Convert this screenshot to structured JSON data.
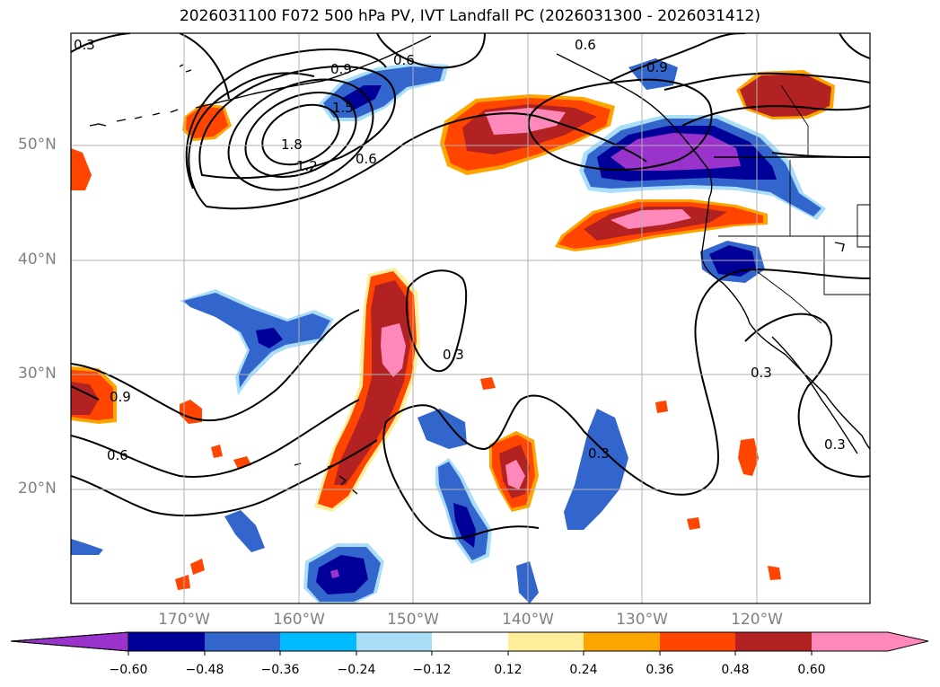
{
  "title": "2026031100 F072 500 hPa PV, IVT Landfall PC (2026031300 - 2026031412)",
  "map": {
    "lat_labels": [
      "50°N",
      "40°N",
      "30°N",
      "20°N"
    ],
    "lon_labels": [
      "170°W",
      "160°W",
      "150°W",
      "140°W",
      "130°W",
      "120°W"
    ],
    "contour_labels": [
      "0.3",
      "0.9",
      "0.6",
      "1.5",
      "1.8",
      "1.2",
      "0.6",
      "0.6",
      "0.9",
      "0.3",
      "0.9",
      "0.6",
      "0.3",
      "0.3",
      "0.3"
    ],
    "shading_colors": {
      "neg_060": "#9933cc",
      "neg_048": "#000099",
      "neg_036": "#3366cc",
      "neg_024": "#00bbff",
      "neg_012": "#aaddf8",
      "pos_012": "#ffee99",
      "pos_024": "#ffa500",
      "pos_036": "#ff4500",
      "pos_048": "#b22222",
      "pos_060": "#ff88bb"
    }
  },
  "colorbar": {
    "tick_labels": [
      "−0.60",
      "−0.48",
      "−0.36",
      "−0.24",
      "−0.12",
      "0.12",
      "0.24",
      "0.36",
      "0.48",
      "0.60"
    ]
  }
}
